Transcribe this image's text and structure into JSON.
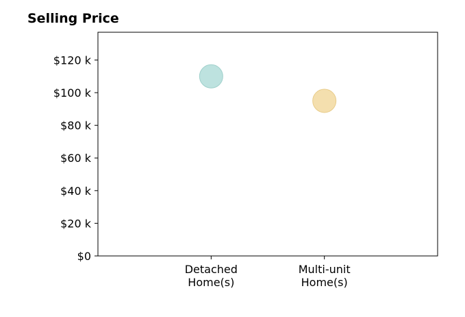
{
  "chart_data": {
    "type": "scatter",
    "title": "Selling Price",
    "categories": [
      "Detached\nHome(s)",
      "Multi-unit\nHome(s)"
    ],
    "values": [
      110000,
      95000
    ],
    "point_colors": [
      "#b2ddd9",
      "#f2d9a0"
    ],
    "point_edge_colors": [
      "#9fd0cb",
      "#e8cc8a"
    ],
    "y_ticks": [
      0,
      20000,
      40000,
      60000,
      80000,
      100000,
      120000
    ],
    "y_tick_labels": [
      "$0",
      "$20 k",
      "$40 k",
      "$60 k",
      "$80 k",
      "$100 k",
      "$120 k"
    ],
    "ylim": [
      0,
      137000
    ],
    "xlim": [
      -1,
      2
    ],
    "grid": false,
    "legend": "none",
    "xlabel": "",
    "ylabel": ""
  }
}
